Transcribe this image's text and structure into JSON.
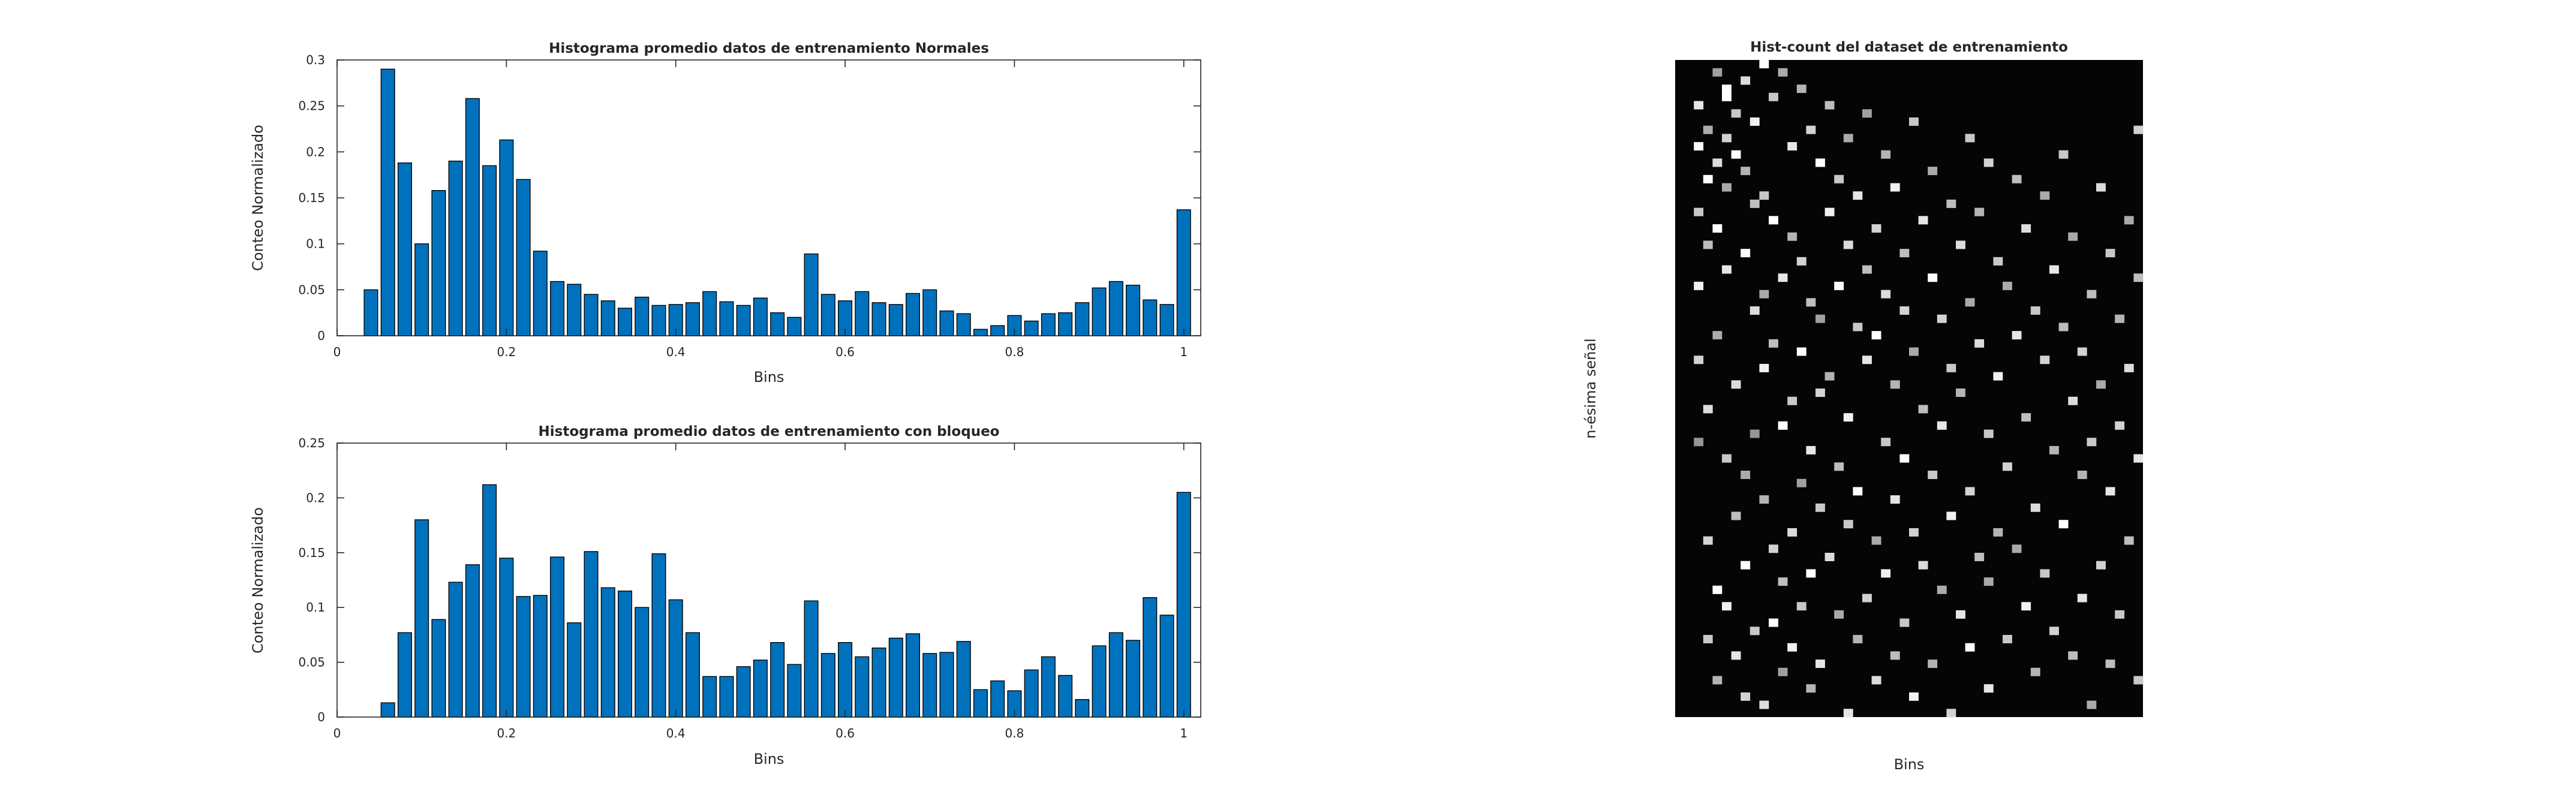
{
  "chart_data": [
    {
      "type": "bar",
      "title": "Histograma promedio datos de entrenamiento Normales",
      "xlabel": "Bins",
      "ylabel": "Conteo Normalizado",
      "xlim": [
        0,
        1.02
      ],
      "ylim": [
        0,
        0.3
      ],
      "xticks": [
        "0",
        "0.2",
        "0.4",
        "0.6",
        "0.8",
        "1"
      ],
      "yticks": [
        "0",
        "0.05",
        "0.1",
        "0.15",
        "0.2",
        "0.25",
        "0.3"
      ],
      "bar_color": "#0072BD",
      "x": [
        0.02,
        0.04,
        0.06,
        0.08,
        0.1,
        0.12,
        0.14,
        0.16,
        0.18,
        0.2,
        0.22,
        0.24,
        0.26,
        0.28,
        0.3,
        0.32,
        0.34,
        0.36,
        0.38,
        0.4,
        0.42,
        0.44,
        0.46,
        0.48,
        0.5,
        0.52,
        0.54,
        0.56,
        0.58,
        0.6,
        0.62,
        0.64,
        0.66,
        0.68,
        0.7,
        0.72,
        0.74,
        0.76,
        0.78,
        0.8,
        0.82,
        0.84,
        0.86,
        0.88,
        0.9,
        0.92,
        0.94,
        0.96,
        0.98,
        1.0
      ],
      "values": [
        0,
        0.05,
        0.29,
        0.188,
        0.1,
        0.158,
        0.19,
        0.258,
        0.185,
        0.213,
        0.17,
        0.092,
        0.059,
        0.056,
        0.045,
        0.038,
        0.03,
        0.042,
        0.033,
        0.034,
        0.036,
        0.048,
        0.037,
        0.033,
        0.041,
        0.025,
        0.02,
        0.089,
        0.045,
        0.038,
        0.048,
        0.036,
        0.034,
        0.046,
        0.05,
        0.027,
        0.024,
        0.007,
        0.011,
        0.022,
        0.016,
        0.024,
        0.025,
        0.036,
        0.052,
        0.059,
        0.055,
        0.039,
        0.034,
        0.137
      ]
    },
    {
      "type": "bar",
      "title": "Histograma promedio datos de entrenamiento con bloqueo",
      "xlabel": "Bins",
      "ylabel": "Conteo Normalizado",
      "xlim": [
        0,
        1.02
      ],
      "ylim": [
        0,
        0.25
      ],
      "xticks": [
        "0",
        "0.2",
        "0.4",
        "0.6",
        "0.8",
        "1"
      ],
      "yticks": [
        "0",
        "0.05",
        "0.1",
        "0.15",
        "0.2",
        "0.25"
      ],
      "bar_color": "#0072BD",
      "x": [
        0.02,
        0.04,
        0.06,
        0.08,
        0.1,
        0.12,
        0.14,
        0.16,
        0.18,
        0.2,
        0.22,
        0.24,
        0.26,
        0.28,
        0.3,
        0.32,
        0.34,
        0.36,
        0.38,
        0.4,
        0.42,
        0.44,
        0.46,
        0.48,
        0.5,
        0.52,
        0.54,
        0.56,
        0.58,
        0.6,
        0.62,
        0.64,
        0.66,
        0.68,
        0.7,
        0.72,
        0.74,
        0.76,
        0.78,
        0.8,
        0.82,
        0.84,
        0.86,
        0.88,
        0.9,
        0.92,
        0.94,
        0.96,
        0.98,
        1.0
      ],
      "values": [
        0,
        0,
        0.013,
        0.077,
        0.18,
        0.089,
        0.123,
        0.139,
        0.212,
        0.145,
        0.11,
        0.111,
        0.146,
        0.086,
        0.151,
        0.118,
        0.115,
        0.1,
        0.149,
        0.107,
        0.077,
        0.037,
        0.037,
        0.046,
        0.052,
        0.068,
        0.048,
        0.106,
        0.058,
        0.068,
        0.055,
        0.063,
        0.072,
        0.076,
        0.058,
        0.059,
        0.069,
        0.025,
        0.033,
        0.024,
        0.043,
        0.055,
        0.038,
        0.016,
        0.065,
        0.077,
        0.07,
        0.109,
        0.093,
        0.205
      ]
    },
    {
      "type": "heatmap",
      "title": "Hist-count del dataset de entrenamiento",
      "xlabel": "Bins",
      "ylabel": "n-ésima señal",
      "colormap": "gray",
      "columns": 50,
      "rows": 80,
      "background_color": "#050505",
      "cells": [
        [
          2,
          5,
          230
        ],
        [
          2,
          10,
          255
        ],
        [
          2,
          18,
          200
        ],
        [
          2,
          27,
          240
        ],
        [
          2,
          36,
          210
        ],
        [
          2,
          46,
          150
        ],
        [
          3,
          8,
          170
        ],
        [
          3,
          14,
          255
        ],
        [
          3,
          22,
          190
        ],
        [
          3,
          42,
          220
        ],
        [
          3,
          58,
          210
        ],
        [
          3,
          70,
          200
        ],
        [
          4,
          1,
          160
        ],
        [
          4,
          12,
          220
        ],
        [
          4,
          20,
          255
        ],
        [
          4,
          33,
          170
        ],
        [
          4,
          64,
          255
        ],
        [
          4,
          75,
          180
        ],
        [
          5,
          3,
          255
        ],
        [
          5,
          4,
          255
        ],
        [
          5,
          9,
          210
        ],
        [
          5,
          15,
          170
        ],
        [
          5,
          25,
          230
        ],
        [
          5,
          48,
          200
        ],
        [
          5,
          66,
          240
        ],
        [
          6,
          6,
          200
        ],
        [
          6,
          11,
          255
        ],
        [
          6,
          39,
          220
        ],
        [
          6,
          55,
          190
        ],
        [
          6,
          72,
          230
        ],
        [
          7,
          2,
          220
        ],
        [
          7,
          13,
          180
        ],
        [
          7,
          23,
          255
        ],
        [
          7,
          50,
          170
        ],
        [
          7,
          61,
          255
        ],
        [
          7,
          77,
          210
        ],
        [
          8,
          7,
          240
        ],
        [
          8,
          17,
          190
        ],
        [
          8,
          30,
          220
        ],
        [
          8,
          45,
          150
        ],
        [
          8,
          69,
          200
        ],
        [
          9,
          0,
          255
        ],
        [
          9,
          16,
          200
        ],
        [
          9,
          28,
          170
        ],
        [
          9,
          37,
          240
        ],
        [
          9,
          53,
          180
        ],
        [
          9,
          78,
          220
        ],
        [
          10,
          4,
          200
        ],
        [
          10,
          19,
          255
        ],
        [
          10,
          34,
          190
        ],
        [
          10,
          59,
          210
        ],
        [
          10,
          68,
          255
        ],
        [
          11,
          1,
          170
        ],
        [
          11,
          26,
          230
        ],
        [
          11,
          44,
          255
        ],
        [
          11,
          63,
          190
        ],
        [
          11,
          74,
          160
        ],
        [
          12,
          10,
          230
        ],
        [
          12,
          21,
          180
        ],
        [
          12,
          41,
          200
        ],
        [
          12,
          57,
          220
        ],
        [
          12,
          71,
          240
        ],
        [
          13,
          3,
          180
        ],
        [
          13,
          24,
          210
        ],
        [
          13,
          35,
          255
        ],
        [
          13,
          51,
          160
        ],
        [
          13,
          66,
          200
        ],
        [
          14,
          8,
          210
        ],
        [
          14,
          29,
          190
        ],
        [
          14,
          47,
          230
        ],
        [
          14,
          62,
          255
        ],
        [
          14,
          76,
          180
        ],
        [
          15,
          12,
          255
        ],
        [
          15,
          31,
          160
        ],
        [
          15,
          40,
          210
        ],
        [
          15,
          54,
          200
        ],
        [
          15,
          73,
          230
        ],
        [
          16,
          5,
          190
        ],
        [
          16,
          18,
          240
        ],
        [
          16,
          38,
          180
        ],
        [
          16,
          60,
          220
        ],
        [
          17,
          14,
          200
        ],
        [
          17,
          27,
          255
        ],
        [
          17,
          49,
          190
        ],
        [
          17,
          67,
          170
        ],
        [
          18,
          9,
          170
        ],
        [
          18,
          22,
          220
        ],
        [
          18,
          43,
          240
        ],
        [
          18,
          56,
          200
        ],
        [
          18,
          79,
          230
        ],
        [
          19,
          16,
          230
        ],
        [
          19,
          32,
          200
        ],
        [
          19,
          52,
          255
        ],
        [
          19,
          70,
          180
        ],
        [
          20,
          6,
          160
        ],
        [
          20,
          25,
          190
        ],
        [
          20,
          36,
          230
        ],
        [
          20,
          65,
          210
        ],
        [
          21,
          20,
          210
        ],
        [
          21,
          33,
          255
        ],
        [
          21,
          58,
          170
        ],
        [
          21,
          75,
          220
        ],
        [
          22,
          11,
          180
        ],
        [
          22,
          28,
          220
        ],
        [
          22,
          46,
          200
        ],
        [
          22,
          62,
          240
        ],
        [
          23,
          15,
          240
        ],
        [
          23,
          39,
          180
        ],
        [
          23,
          53,
          230
        ],
        [
          23,
          72,
          190
        ],
        [
          24,
          23,
          190
        ],
        [
          24,
          30,
          210
        ],
        [
          24,
          48,
          255
        ],
        [
          24,
          68,
          200
        ],
        [
          25,
          7,
          200
        ],
        [
          25,
          35,
          170
        ],
        [
          25,
          57,
          210
        ],
        [
          25,
          77,
          240
        ],
        [
          26,
          19,
          230
        ],
        [
          26,
          42,
          190
        ],
        [
          26,
          61,
          220
        ],
        [
          27,
          13,
          170
        ],
        [
          27,
          26,
          255
        ],
        [
          27,
          50,
          200
        ],
        [
          27,
          73,
          180
        ],
        [
          28,
          31,
          210
        ],
        [
          28,
          44,
          230
        ],
        [
          28,
          64,
          170
        ],
        [
          29,
          17,
          190
        ],
        [
          29,
          37,
          200
        ],
        [
          29,
          55,
          240
        ],
        [
          29,
          79,
          210
        ],
        [
          30,
          22,
          220
        ],
        [
          30,
          40,
          180
        ],
        [
          30,
          67,
          230
        ],
        [
          31,
          9,
          200
        ],
        [
          31,
          29,
          170
        ],
        [
          31,
          52,
          210
        ],
        [
          31,
          71,
          255
        ],
        [
          32,
          18,
          180
        ],
        [
          32,
          34,
          220
        ],
        [
          32,
          60,
          190
        ],
        [
          33,
          12,
          210
        ],
        [
          33,
          45,
          200
        ],
        [
          33,
          63,
          170
        ],
        [
          33,
          76,
          230
        ],
        [
          34,
          24,
          200
        ],
        [
          34,
          38,
          240
        ],
        [
          34,
          57,
          180
        ],
        [
          35,
          27,
          170
        ],
        [
          35,
          49,
          210
        ],
        [
          35,
          70,
          200
        ],
        [
          36,
          14,
          190
        ],
        [
          36,
          33,
          230
        ],
        [
          36,
          59,
          170
        ],
        [
          37,
          20,
          220
        ],
        [
          37,
          43,
          190
        ],
        [
          37,
          66,
          240
        ],
        [
          38,
          30,
          200
        ],
        [
          38,
          54,
          220
        ],
        [
          38,
          74,
          180
        ],
        [
          39,
          16,
          170
        ],
        [
          39,
          36,
          210
        ],
        [
          39,
          62,
          200
        ],
        [
          40,
          25,
          230
        ],
        [
          40,
          47,
          180
        ],
        [
          40,
          69,
          210
        ],
        [
          41,
          11,
          200
        ],
        [
          41,
          32,
          190
        ],
        [
          41,
          56,
          255
        ],
        [
          42,
          21,
          170
        ],
        [
          42,
          41,
          220
        ],
        [
          42,
          72,
          190
        ],
        [
          43,
          35,
          210
        ],
        [
          43,
          50,
          180
        ],
        [
          43,
          65,
          230
        ],
        [
          44,
          28,
          190
        ],
        [
          44,
          46,
          200
        ],
        [
          44,
          78,
          170
        ],
        [
          45,
          15,
          220
        ],
        [
          45,
          39,
          170
        ],
        [
          45,
          61,
          210
        ],
        [
          46,
          23,
          200
        ],
        [
          46,
          52,
          230
        ],
        [
          46,
          73,
          190
        ],
        [
          47,
          31,
          180
        ],
        [
          47,
          44,
          210
        ],
        [
          47,
          67,
          200
        ],
        [
          48,
          19,
          170
        ],
        [
          48,
          37,
          220
        ],
        [
          48,
          58,
          190
        ],
        [
          49,
          8,
          210
        ],
        [
          49,
          26,
          190
        ],
        [
          49,
          48,
          230
        ],
        [
          49,
          75,
          200
        ]
      ]
    }
  ]
}
